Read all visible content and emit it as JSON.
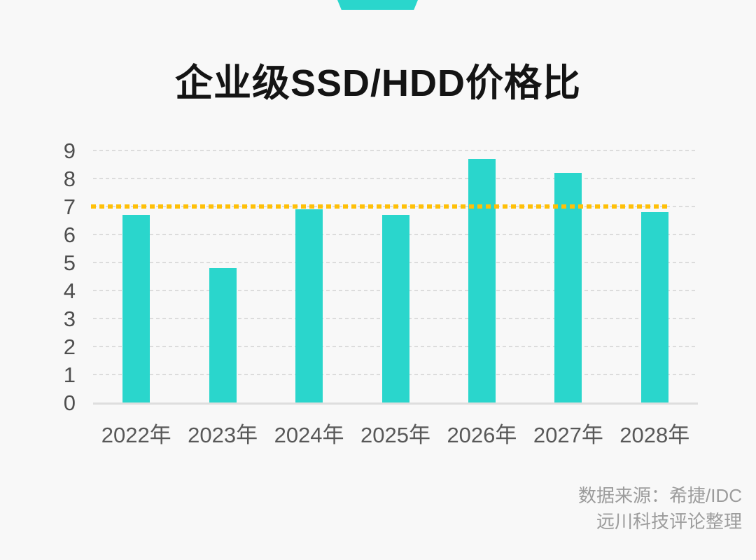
{
  "page": {
    "background_color": "#f8f8f8"
  },
  "decor": {
    "top_shape": "trapezoid-banner",
    "top_shape_color": "#2ad6cc"
  },
  "chart_data": {
    "type": "bar",
    "title": "企业级SSD/HDD价格比",
    "categories": [
      "2022年",
      "2023年",
      "2024年",
      "2025年",
      "2026年",
      "2027年",
      "2028年"
    ],
    "values": [
      6.7,
      4.8,
      6.9,
      6.7,
      8.7,
      8.2,
      6.8
    ],
    "xlabel": "",
    "ylabel": "",
    "ylim": [
      0,
      9
    ],
    "yticks": [
      0,
      1,
      2,
      3,
      4,
      5,
      6,
      7,
      8,
      9
    ],
    "grid": "horizontal-dashed",
    "legend": "none",
    "bar_color": "#2ad6cc",
    "reference_line": {
      "value": 7,
      "style": "dotted",
      "color": "#ffc008"
    }
  },
  "source": {
    "line1": "数据来源：希捷/IDC",
    "line2": "远川科技评论整理"
  },
  "colors": {
    "title_text": "#141414",
    "tick_label_text": "#4f4f4f",
    "gridline": "#dcdcdc",
    "axis_line": "#dedede",
    "source_text": "#9c9c9c"
  }
}
